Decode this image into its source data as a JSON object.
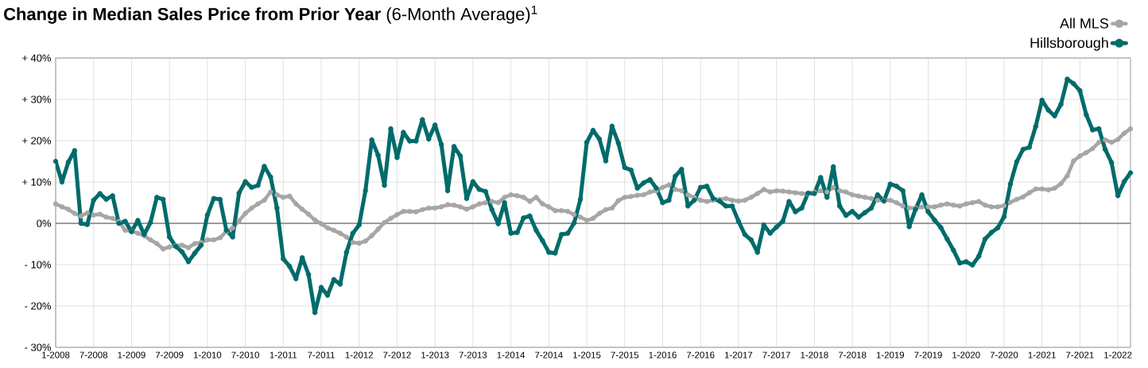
{
  "chart_data": {
    "type": "line",
    "title": "**Change in Median Sales Price from Prior Year** (6-Month Average)$^{1}$",
    "categories": [
      "1-2008",
      null,
      null,
      null,
      null,
      null,
      "7-2008",
      null,
      null,
      null,
      null,
      null,
      "1-2009",
      null,
      null,
      null,
      null,
      null,
      "7-2009",
      null,
      null,
      null,
      null,
      null,
      "1-2010",
      null,
      null,
      null,
      null,
      null,
      "7-2010",
      null,
      null,
      null,
      null,
      null,
      "1-2011",
      null,
      null,
      null,
      null,
      null,
      "7-2011",
      null,
      null,
      null,
      null,
      null,
      "1-2012",
      null,
      null,
      null,
      null,
      null,
      "7-2012",
      null,
      null,
      null,
      null,
      null,
      "1-2013",
      null,
      null,
      null,
      null,
      null,
      "7-2013",
      null,
      null,
      null,
      null,
      null,
      "1-2014",
      null,
      null,
      null,
      null,
      null,
      "7-2014",
      null,
      null,
      null,
      null,
      null,
      "1-2015",
      null,
      null,
      null,
      null,
      null,
      "7-2015",
      null,
      null,
      null,
      null,
      null,
      "1-2016",
      null,
      null,
      null,
      null,
      null,
      "7-2016",
      null,
      null,
      null,
      null,
      null,
      "1-2017",
      null,
      null,
      null,
      null,
      null,
      "7-2017",
      null,
      null,
      null,
      null,
      null,
      "1-2018",
      null,
      null,
      null,
      null,
      null,
      "7-2018",
      null,
      null,
      null,
      null,
      null,
      "1-2019",
      null,
      null,
      null,
      null,
      null,
      "7-2019",
      null,
      null,
      null,
      null,
      null,
      "1-2020",
      null,
      null,
      null,
      null,
      null,
      "7-2020",
      null,
      null,
      null,
      null,
      null,
      "1-2021",
      null,
      null,
      null,
      null,
      null,
      "7-2021",
      null,
      null,
      null,
      null,
      null,
      "1-2022",
      null,
      null
    ],
    "series": [
      {
        "name": "All MLS",
        "color": "#a6a6a6",
        "values": [
          4.7,
          4,
          3.4,
          2.4,
          1.8,
          2.5,
          2,
          2.2,
          1.5,
          1.2,
          0.5,
          -1.7,
          -1.9,
          -2.4,
          -3,
          -4,
          -4.9,
          -6.2,
          -5.7,
          -5.4,
          -5.3,
          -5.9,
          -4.9,
          -4.6,
          -4,
          -4,
          -3.5,
          -2,
          -1.1,
          0.6,
          2.4,
          3.7,
          4.7,
          5.6,
          7.6,
          6.9,
          6.3,
          6.6,
          4.7,
          3.4,
          2.2,
          0.8,
          -0.1,
          -1.1,
          -1.7,
          -2.4,
          -3.3,
          -4.6,
          -4.8,
          -4.3,
          -3,
          -1.4,
          0.2,
          1.2,
          2.1,
          2.9,
          2.9,
          2.8,
          3.3,
          3.7,
          3.7,
          4,
          4.5,
          4.4,
          4,
          3.4,
          4,
          4.7,
          5,
          5.3,
          5,
          6.3,
          6.9,
          6.7,
          6.3,
          5.3,
          6.3,
          4.7,
          4,
          3.1,
          3.1,
          2.9,
          2.1,
          1.5,
          0.7,
          1.2,
          2.4,
          3.3,
          3.7,
          5.5,
          6.3,
          6.5,
          6.8,
          6.9,
          7.6,
          7.9,
          8.7,
          9.3,
          8.2,
          7.9,
          6.9,
          6.3,
          5.6,
          5.3,
          5.6,
          5.8,
          6,
          5.6,
          5.4,
          5.6,
          6.3,
          7.2,
          8.2,
          7.6,
          7.9,
          7.8,
          7.6,
          7.4,
          7.2,
          7.1,
          7.6,
          7.9,
          7.6,
          8.7,
          7.9,
          7.6,
          6.9,
          6.6,
          6.3,
          6,
          5.6,
          5.6,
          5.6,
          5,
          4.2,
          3.7,
          3.7,
          4,
          4,
          4,
          4.4,
          4.7,
          4.4,
          4.2,
          4.7,
          5,
          5.3,
          4.4,
          4,
          4,
          4.3,
          5.1,
          5.8,
          6.4,
          7.4,
          8.3,
          8.3,
          8.1,
          8.5,
          9.6,
          11.5,
          15.1,
          16.3,
          17.1,
          18.1,
          19.6,
          20.2,
          19.6,
          20.3,
          21.8,
          22.9
        ]
      },
      {
        "name": "Hillsborough",
        "color": "#006b6b",
        "values": [
          15,
          10,
          14.8,
          17.6,
          0,
          -0.3,
          5.6,
          7.2,
          5.8,
          6.7,
          0,
          0.5,
          -2,
          0.7,
          -2.7,
          0.2,
          6.3,
          5.8,
          -3.3,
          -5.6,
          -6.9,
          -9.3,
          -7.2,
          -5.3,
          2,
          6,
          5.8,
          -1.7,
          -3.3,
          7.3,
          10.1,
          8.7,
          9.2,
          13.8,
          11.2,
          3.7,
          -8.6,
          -10.4,
          -13.4,
          -8.3,
          -12.4,
          -21.6,
          -15.5,
          -17.4,
          -13.6,
          -14.7,
          -7,
          -2.4,
          -0.4,
          7.9,
          20.2,
          16.5,
          9.2,
          22.9,
          15.9,
          22,
          19.9,
          19.9,
          25.1,
          20.4,
          23.8,
          19.1,
          7.9,
          18.6,
          16.3,
          6,
          10.1,
          8.2,
          7.7,
          3.3,
          -0.1,
          5,
          -2.4,
          -2.2,
          1.3,
          1.8,
          -1.7,
          -4.2,
          -7,
          -7.2,
          -2.7,
          -2.4,
          0.1,
          5.8,
          19.6,
          22.5,
          20.4,
          15.1,
          23.5,
          19.4,
          13.5,
          12.9,
          8.5,
          9.8,
          10.6,
          8.5,
          5,
          5.6,
          11.4,
          13.1,
          4.2,
          5.6,
          8.7,
          9,
          6,
          5.4,
          4.2,
          4.2,
          0.5,
          -2.7,
          -4,
          -7,
          -0.4,
          -2.4,
          -0.9,
          0.5,
          5.3,
          2.8,
          3.7,
          7.3,
          7.2,
          11.1,
          6.3,
          13.7,
          4.2,
          1.9,
          2.9,
          1.5,
          2.6,
          3.7,
          6.9,
          5.4,
          9.5,
          9,
          7.9,
          -0.8,
          3.4,
          6.9,
          2.8,
          0.8,
          -1,
          -3.8,
          -6.5,
          -9.6,
          -9.3,
          -10.1,
          -8,
          -3.8,
          -2.2,
          -1.1,
          1.6,
          9.5,
          14.9,
          17.9,
          18.4,
          23.4,
          29.8,
          27.4,
          26,
          28.8,
          34.9,
          33.8,
          32.1,
          26.3,
          22.6,
          22.9,
          17.9,
          14.7,
          6.7,
          10.1,
          12.2
        ]
      }
    ],
    "ylim": [
      -30,
      40
    ],
    "yticks": [
      {
        "value": -30,
        "label": "- 30%"
      },
      {
        "value": -20,
        "label": "- 20%"
      },
      {
        "value": -10,
        "label": "- 10%"
      },
      {
        "value": 0,
        "label": "0%"
      },
      {
        "value": 10,
        "label": "+ 10%"
      },
      {
        "value": 20,
        "label": "+ 20%"
      },
      {
        "value": 30,
        "label": "+ 30%"
      },
      {
        "value": 40,
        "label": "+ 40%"
      }
    ],
    "ref_lines": [
      {
        "axis": "y",
        "value": 0,
        "color": "#808080"
      }
    ],
    "grid": true,
    "legend": "top right",
    "marker": "circle",
    "line_style": "solid"
  }
}
